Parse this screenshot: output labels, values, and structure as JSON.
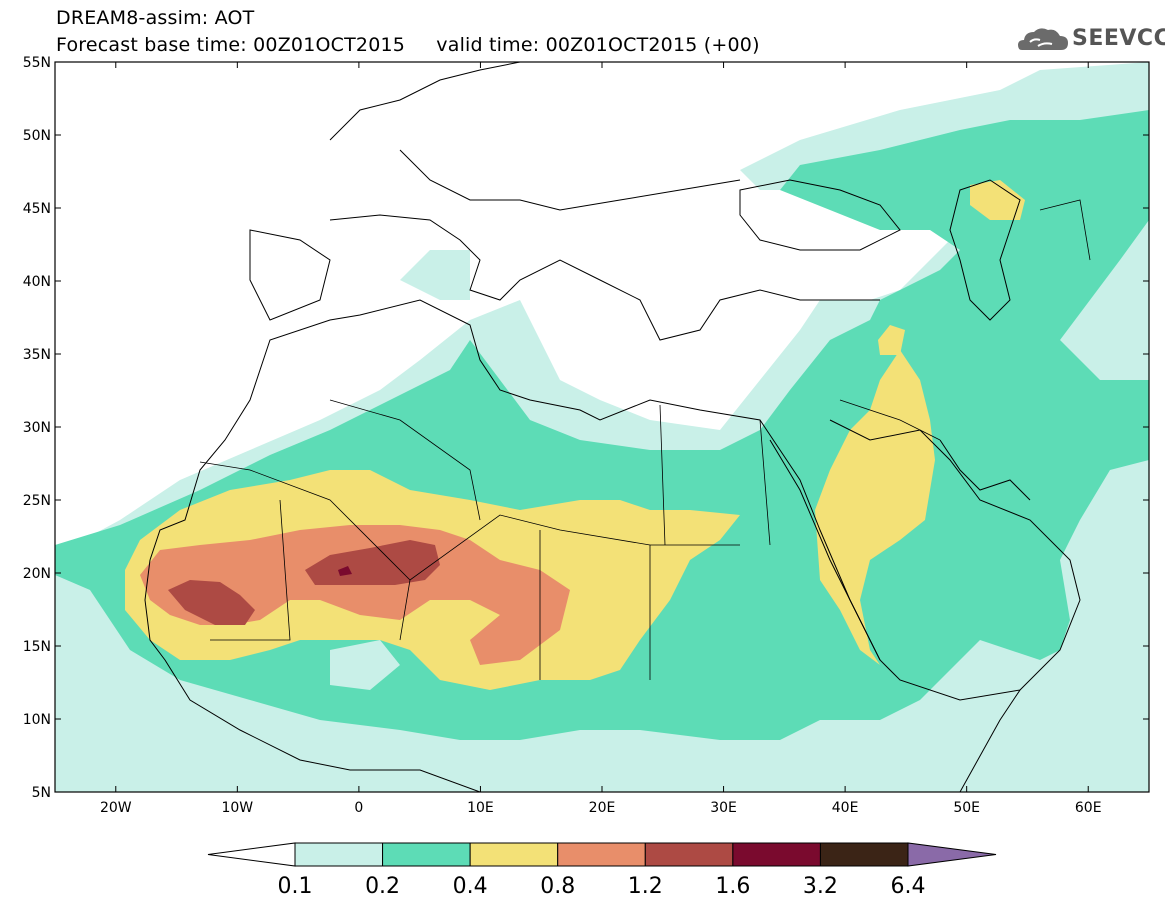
{
  "title": {
    "line1": "DREAM8-assim: AOT",
    "line2": "Forecast base time: 00Z01OCT2015     valid time: 00Z01OCT2015 (+00)"
  },
  "logo": {
    "text": "SEEVCCC",
    "icon": "cloud-icon"
  },
  "map": {
    "region": "North Africa and Middle East",
    "lon_range": [
      -25,
      65
    ],
    "lat_range": [
      5,
      55
    ],
    "x_ticks": [
      "20W",
      "10W",
      "0",
      "10E",
      "20E",
      "30E",
      "40E",
      "50E",
      "60E"
    ],
    "y_ticks": [
      "5N",
      "10N",
      "15N",
      "20N",
      "25N",
      "30N",
      "35N",
      "40N",
      "45N",
      "50N",
      "55N"
    ]
  },
  "colorbar": {
    "labels": [
      "0.1",
      "0.2",
      "0.4",
      "0.8",
      "1.2",
      "1.6",
      "3.2",
      "6.4"
    ],
    "colors": [
      "#c9f0e8",
      "#5ddcb6",
      "#f3e177",
      "#e88e6a",
      "#ad4a44",
      "#7a0a2e",
      "#3b2416",
      "#8a6aa8"
    ],
    "under_color": "#ffffff"
  }
}
